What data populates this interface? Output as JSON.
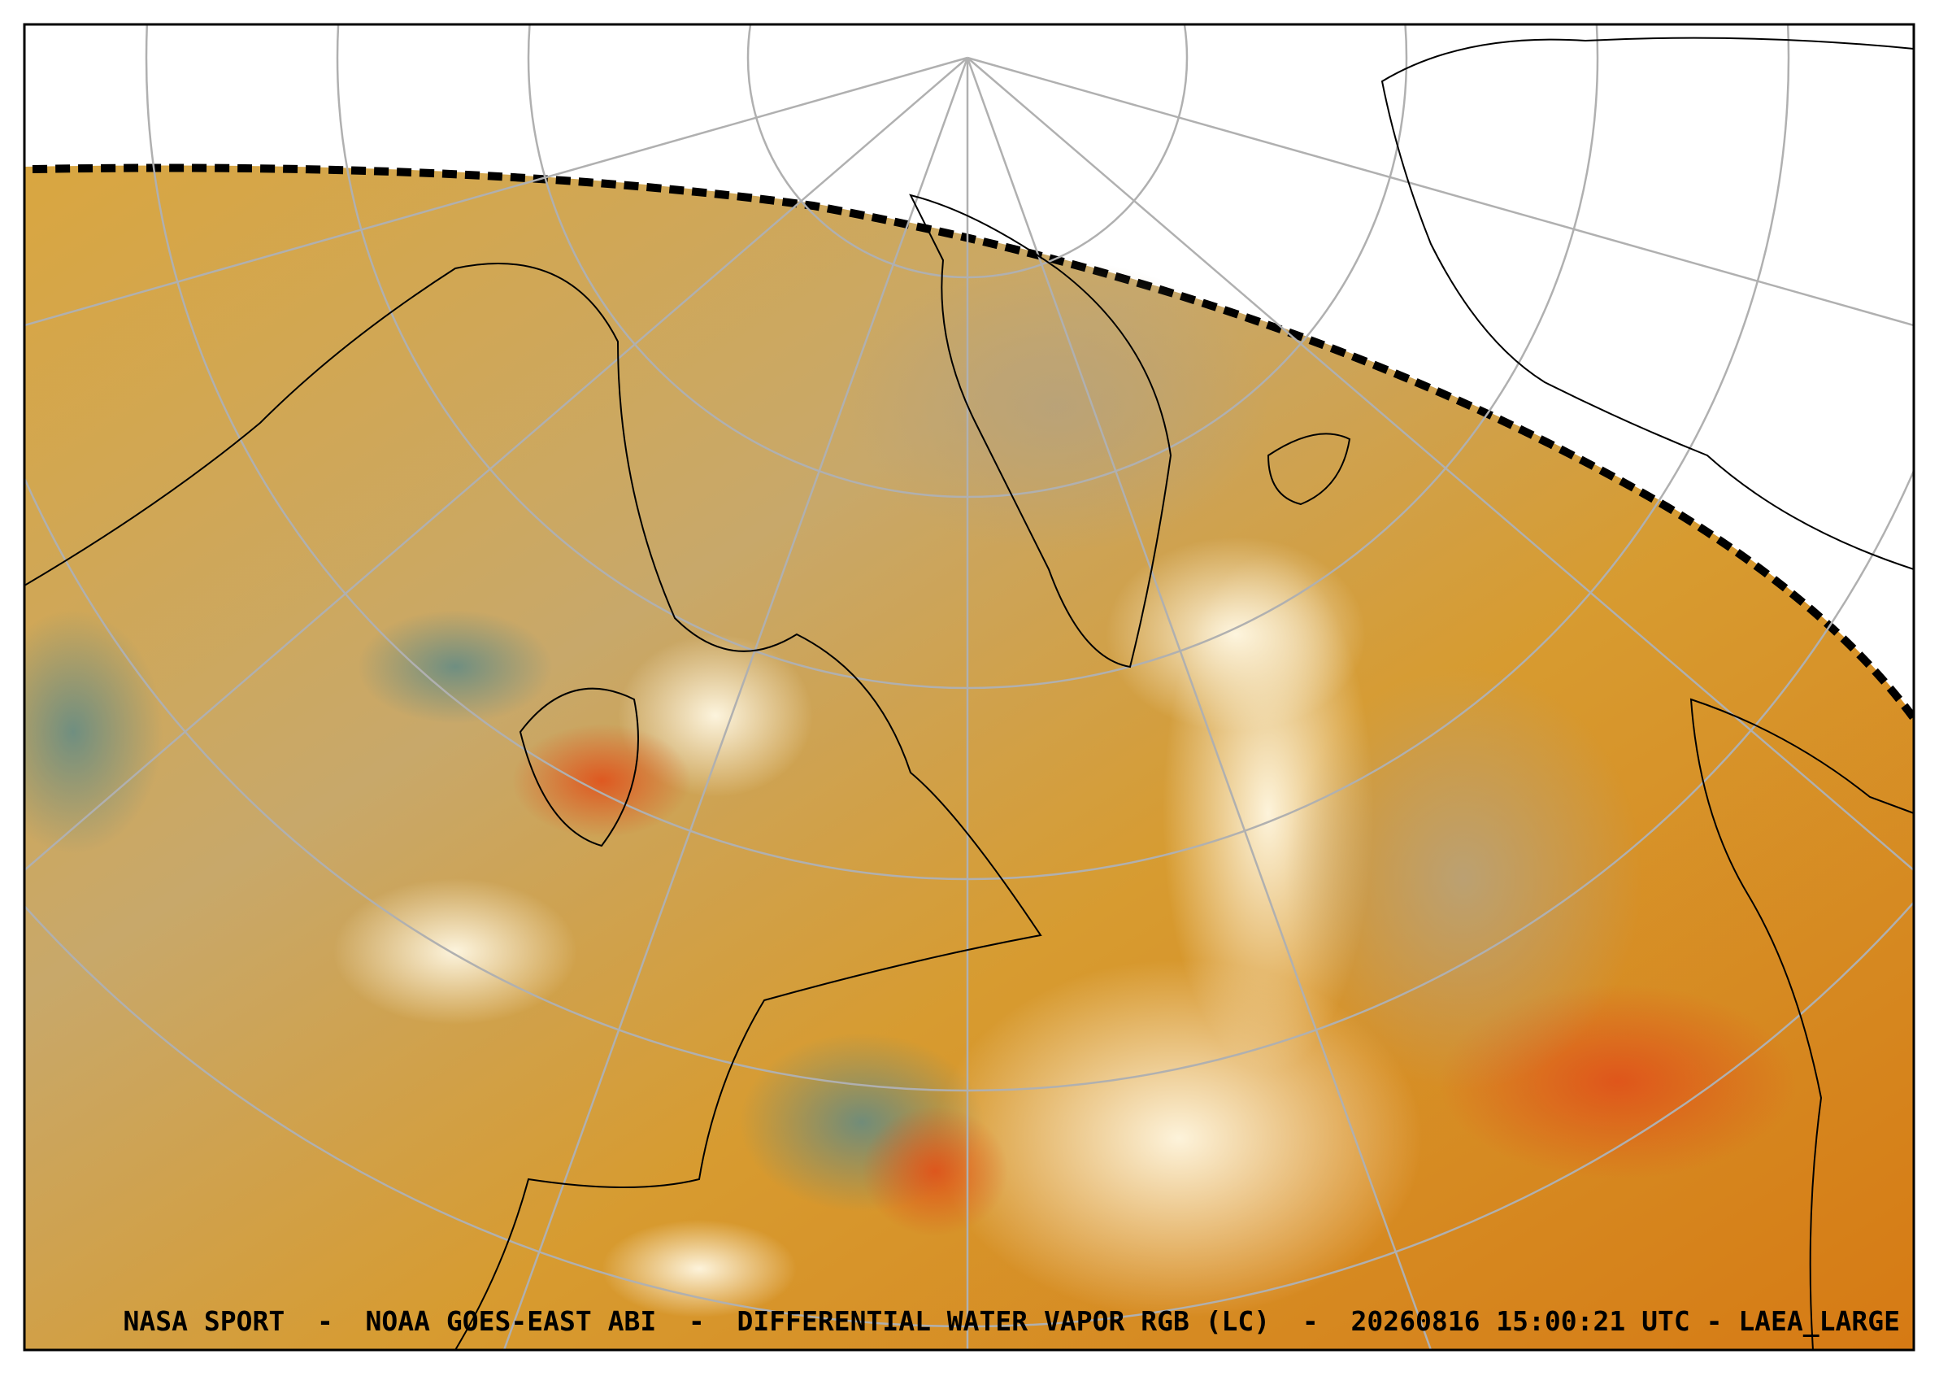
{
  "caption": "NASA SPORT  -  NOAA GOES-EAST ABI  -  DIFFERENTIAL WATER VAPOR RGB (LC)  -  20260816 15:00:21 UTC - LAEA_LARGE"
}
